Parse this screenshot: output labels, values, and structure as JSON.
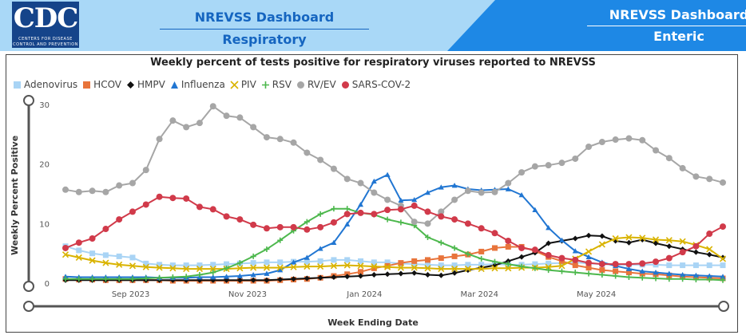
{
  "header": {
    "logo_text": "CDC",
    "logo_subtext_1": "CENTERS FOR DISEASE",
    "logo_subtext_2": "CONTROL AND PREVENTION",
    "tabs": [
      {
        "line1": "NREVSS Dashboard",
        "line2": "Respiratory",
        "active": true
      },
      {
        "line1": "NREVSS Dashboard",
        "line2": "Enteric",
        "active": false
      }
    ],
    "colors": {
      "active_bg": "#a9d8f7",
      "inactive_bg": "#1e88e5",
      "logo_bg": "#15448a",
      "active_text": "#1565c0"
    }
  },
  "chart_data": {
    "type": "line",
    "title": "Weekly percent of tests positive for respiratory viruses reported to NREVSS",
    "xlabel": "Week Ending Date",
    "ylabel": "Weekly Percent Positive",
    "ylim": [
      0,
      30
    ],
    "yticks": [
      0,
      10,
      20,
      30
    ],
    "x": [
      "2023-07-29",
      "2023-08-05",
      "2023-08-12",
      "2023-08-19",
      "2023-08-26",
      "2023-09-02",
      "2023-09-09",
      "2023-09-16",
      "2023-09-23",
      "2023-09-30",
      "2023-10-07",
      "2023-10-14",
      "2023-10-21",
      "2023-10-28",
      "2023-11-04",
      "2023-11-11",
      "2023-11-18",
      "2023-11-25",
      "2023-12-02",
      "2023-12-09",
      "2023-12-16",
      "2023-12-23",
      "2023-12-30",
      "2024-01-06",
      "2024-01-13",
      "2024-01-20",
      "2024-01-27",
      "2024-02-03",
      "2024-02-10",
      "2024-02-17",
      "2024-02-24",
      "2024-03-02",
      "2024-03-09",
      "2024-03-16",
      "2024-03-23",
      "2024-03-30",
      "2024-04-06",
      "2024-04-13",
      "2024-04-20",
      "2024-04-27",
      "2024-05-04",
      "2024-05-11",
      "2024-05-18",
      "2024-05-25",
      "2024-06-01",
      "2024-06-08",
      "2024-06-15",
      "2024-06-22",
      "2024-06-29",
      "2024-07-06"
    ],
    "x_tick_labels": [
      {
        "label": "Sep 2023",
        "date": "2023-09-01"
      },
      {
        "label": "Nov 2023",
        "date": "2023-11-01"
      },
      {
        "label": "Jan 2024",
        "date": "2024-01-01"
      },
      {
        "label": "Mar 2024",
        "date": "2024-03-01"
      },
      {
        "label": "May 2024",
        "date": "2024-05-01"
      }
    ],
    "grid": false,
    "legend_position": "top-left",
    "series": [
      {
        "name": "Adenovirus",
        "color": "#a9d4f5",
        "marker": "square",
        "values": [
          6.2,
          5.5,
          5.0,
          4.7,
          4.5,
          4.3,
          3.3,
          3.1,
          3.0,
          3.0,
          3.0,
          3.1,
          3.2,
          3.3,
          3.4,
          3.5,
          3.5,
          3.6,
          3.6,
          3.7,
          3.9,
          3.9,
          3.7,
          3.5,
          3.5,
          3.3,
          3.2,
          3.1,
          3.0,
          3.0,
          3.1,
          3.1,
          3.2,
          3.1,
          3.1,
          3.2,
          3.3,
          3.4,
          3.5,
          3.3,
          3.2,
          3.1,
          3.1,
          3.1,
          3.1,
          3.0,
          3.0,
          3.0,
          3.0,
          3.0
        ]
      },
      {
        "name": "HCOV",
        "color": "#e8743b",
        "marker": "square",
        "values": [
          0.7,
          0.6,
          0.6,
          0.5,
          0.5,
          0.5,
          0.5,
          0.5,
          0.4,
          0.4,
          0.4,
          0.4,
          0.4,
          0.4,
          0.4,
          0.4,
          0.5,
          0.6,
          0.7,
          0.9,
          1.2,
          1.5,
          1.9,
          2.5,
          2.9,
          3.4,
          3.7,
          3.9,
          4.2,
          4.5,
          4.8,
          5.3,
          5.9,
          6.1,
          6.1,
          5.4,
          4.4,
          3.7,
          3.0,
          2.6,
          2.2,
          2.0,
          1.8,
          1.6,
          1.5,
          1.3,
          1.1,
          1.0,
          0.9,
          0.8
        ]
      },
      {
        "name": "HMPV",
        "color": "#111111",
        "marker": "diamond",
        "values": [
          0.5,
          0.5,
          0.5,
          0.5,
          0.5,
          0.5,
          0.5,
          0.5,
          0.5,
          0.5,
          0.5,
          0.5,
          0.5,
          0.5,
          0.5,
          0.5,
          0.6,
          0.7,
          0.8,
          0.9,
          1.0,
          1.1,
          1.2,
          1.4,
          1.5,
          1.6,
          1.7,
          1.4,
          1.3,
          1.7,
          2.2,
          2.6,
          3.0,
          3.7,
          4.4,
          5.1,
          6.7,
          7.1,
          7.5,
          8.0,
          7.9,
          7.1,
          6.8,
          7.3,
          6.7,
          6.2,
          5.7,
          5.2,
          4.8,
          4.3
        ]
      },
      {
        "name": "Influenza",
        "color": "#2176d2",
        "marker": "triangle",
        "values": [
          1.1,
          1.0,
          1.0,
          1.0,
          1.0,
          1.0,
          1.0,
          0.9,
          0.9,
          0.9,
          1.0,
          1.0,
          1.1,
          1.2,
          1.4,
          1.6,
          2.2,
          3.5,
          4.3,
          5.8,
          6.8,
          9.9,
          13.2,
          17.1,
          18.2,
          13.9,
          14.0,
          15.2,
          16.1,
          16.4,
          15.8,
          15.6,
          15.7,
          15.8,
          14.8,
          12.3,
          9.3,
          7.2,
          5.4,
          4.4,
          3.5,
          2.9,
          2.4,
          2.0,
          1.8,
          1.6,
          1.4,
          1.3,
          1.2,
          1.1
        ]
      },
      {
        "name": "PIV",
        "color": "#d9b300",
        "marker": "x",
        "values": [
          4.8,
          4.3,
          3.8,
          3.4,
          3.1,
          2.9,
          2.7,
          2.6,
          2.5,
          2.4,
          2.4,
          2.4,
          2.4,
          2.5,
          2.6,
          2.6,
          2.6,
          2.7,
          2.8,
          2.8,
          2.9,
          3.0,
          2.9,
          2.8,
          2.7,
          2.6,
          2.6,
          2.5,
          2.4,
          2.4,
          2.4,
          2.4,
          2.5,
          2.5,
          2.6,
          2.6,
          2.7,
          2.9,
          4.1,
          5.3,
          6.5,
          7.5,
          7.7,
          7.6,
          7.3,
          7.2,
          7.0,
          6.4,
          5.7,
          4.1
        ]
      },
      {
        "name": "RSV",
        "color": "#4db84d",
        "marker": "plus",
        "values": [
          0.7,
          0.7,
          0.7,
          0.7,
          0.7,
          0.7,
          0.8,
          0.9,
          1.0,
          1.1,
          1.4,
          1.8,
          2.5,
          3.4,
          4.5,
          5.7,
          7.2,
          8.8,
          10.3,
          11.6,
          12.5,
          12.5,
          11.8,
          11.5,
          10.7,
          10.2,
          9.7,
          7.7,
          6.8,
          5.9,
          4.9,
          4.1,
          3.6,
          3.2,
          2.8,
          2.5,
          2.2,
          2.0,
          1.8,
          1.6,
          1.4,
          1.2,
          1.0,
          0.9,
          0.8,
          0.7,
          0.7,
          0.6,
          0.6,
          0.5
        ]
      },
      {
        "name": "RV/EV",
        "color": "#a6a6a6",
        "marker": "circle",
        "values": [
          15.7,
          15.3,
          15.5,
          15.3,
          16.4,
          16.8,
          19.0,
          24.2,
          27.3,
          26.2,
          26.9,
          29.7,
          28.1,
          27.8,
          26.2,
          24.5,
          24.2,
          23.6,
          21.9,
          20.7,
          19.2,
          17.5,
          16.8,
          15.2,
          14.0,
          13.0,
          10.3,
          10.0,
          12.0,
          14.0,
          15.5,
          15.2,
          15.3,
          16.8,
          18.6,
          19.6,
          19.8,
          20.2,
          20.9,
          22.9,
          23.7,
          24.1,
          24.3,
          24.0,
          22.3,
          21.0,
          19.3,
          17.9,
          17.5,
          16.9
        ]
      },
      {
        "name": "SARS-COV-2",
        "color": "#d13a4a",
        "marker": "circle",
        "values": [
          5.9,
          6.8,
          7.5,
          9.1,
          10.7,
          12.0,
          13.2,
          14.5,
          14.3,
          14.2,
          12.8,
          12.4,
          11.2,
          10.7,
          9.8,
          9.2,
          9.4,
          9.4,
          9.0,
          9.4,
          10.2,
          11.6,
          11.8,
          11.6,
          12.3,
          12.4,
          13.0,
          12.0,
          11.2,
          10.7,
          10.0,
          9.2,
          8.4,
          7.1,
          5.9,
          5.6,
          4.7,
          4.2,
          3.9,
          3.4,
          3.2,
          3.2,
          3.2,
          3.3,
          3.6,
          4.2,
          5.2,
          6.2,
          8.3,
          9.5
        ]
      }
    ]
  }
}
